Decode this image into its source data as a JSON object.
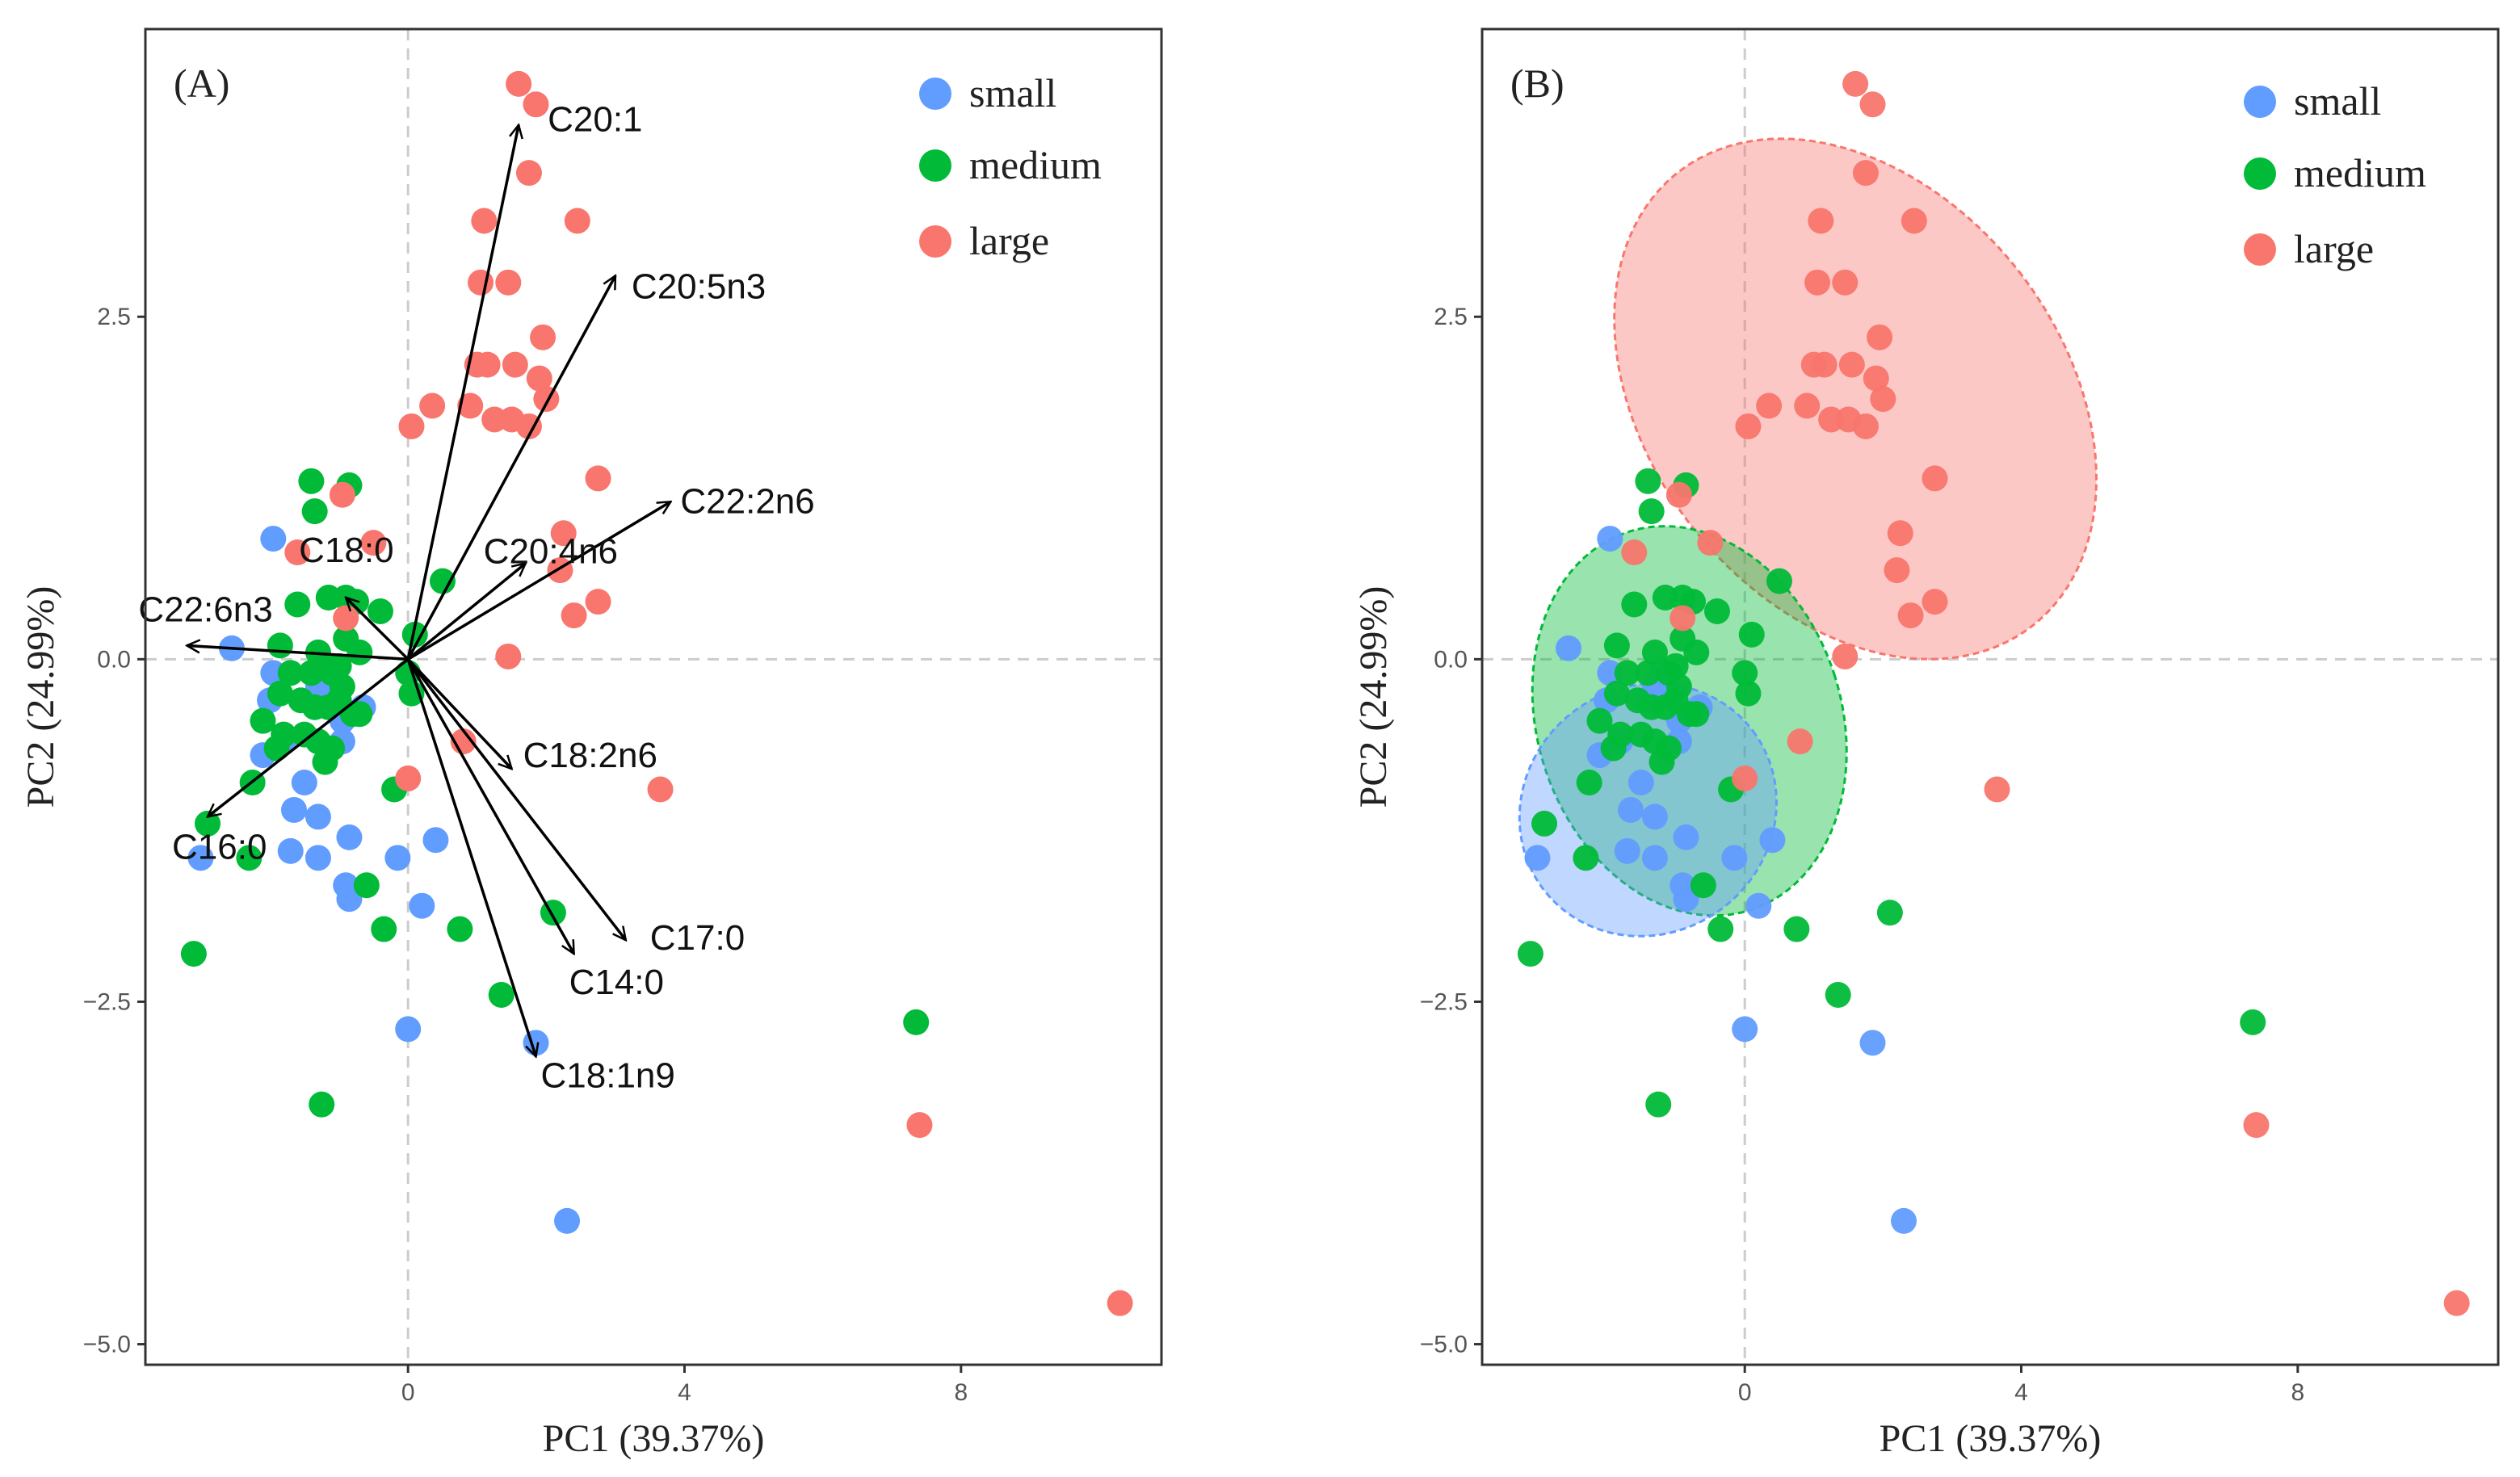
{
  "colors": {
    "small": "#619cff",
    "medium": "#00ba38",
    "large": "#f8766d",
    "frame": "#333333",
    "zero_line": "#cccccc"
  },
  "legend": [
    "small",
    "medium",
    "large"
  ],
  "chart_data": [
    {
      "type": "scatter",
      "subtype": "biplot",
      "panel_label": "(A)",
      "xlabel": "PC1 (39.37%)",
      "ylabel": "PC2 (24.99%)",
      "xlim": [
        -3.8,
        10.9
      ],
      "ylim": [
        -5.15,
        4.6
      ],
      "xticks": [
        0,
        4,
        8
      ],
      "xtick_labels": [
        "0",
        "4",
        "8"
      ],
      "yticks": [
        -5,
        -2.5,
        0,
        2.5
      ],
      "ytick_labels": [
        "−5.0",
        "−2.5",
        "0.0",
        "2.5"
      ],
      "legend_position": "top-right",
      "loadings": [
        {
          "label": "C20:1",
          "x": 1.6,
          "y": 3.9
        },
        {
          "label": "C20:5n3",
          "x": 3.0,
          "y": 2.8
        },
        {
          "label": "C22:2n6",
          "x": 3.8,
          "y": 1.15
        },
        {
          "label": "C20:4n6",
          "x": 1.7,
          "y": 0.7
        },
        {
          "label": "C18:0",
          "x": -0.9,
          "y": 0.45
        },
        {
          "label": "C22:6n3",
          "x": -3.2,
          "y": 0.1
        },
        {
          "label": "C16:0",
          "x": -2.9,
          "y": -1.15
        },
        {
          "label": "C18:2n6",
          "x": 1.5,
          "y": -0.8
        },
        {
          "label": "C17:0",
          "x": 3.15,
          "y": -2.05
        },
        {
          "label": "C14:0",
          "x": 2.4,
          "y": -2.15
        },
        {
          "label": "C18:1n9",
          "x": 1.85,
          "y": -2.9
        }
      ]
    },
    {
      "type": "scatter",
      "panel_label": "(B)",
      "xlabel": "PC1 (39.37%)",
      "ylabel": "PC2 (24.99%)",
      "xlim": [
        -3.8,
        10.9
      ],
      "ylim": [
        -5.15,
        4.6
      ],
      "xticks": [
        0,
        4,
        8
      ],
      "xtick_labels": [
        "0",
        "4",
        "8"
      ],
      "yticks": [
        -5,
        -2.5,
        0,
        2.5
      ],
      "ytick_labels": [
        "−5.0",
        "−2.5",
        "0.0",
        "2.5"
      ],
      "legend_position": "top-right",
      "confidence_ellipses": [
        {
          "group": "large",
          "cx": 1.6,
          "cy": 1.9,
          "rx": 3.0,
          "ry": 2.1,
          "angle_deg": 38
        },
        {
          "group": "medium",
          "cx": -0.8,
          "cy": -0.45,
          "rx": 2.2,
          "ry": 1.45,
          "angle_deg": 18
        },
        {
          "group": "small",
          "cx": -1.4,
          "cy": -1.1,
          "rx": 1.9,
          "ry": 0.9,
          "angle_deg": 37
        }
      ]
    }
  ],
  "series": [
    {
      "name": "small",
      "points": [
        [
          -1.95,
          0.88
        ],
        [
          -2.55,
          0.08
        ],
        [
          -1.95,
          -0.1
        ],
        [
          -1.2,
          -0.1
        ],
        [
          -2.1,
          -0.7
        ],
        [
          -1.8,
          -0.6
        ],
        [
          -1.4,
          -0.3
        ],
        [
          -1.05,
          -0.25
        ],
        [
          -0.95,
          -0.45
        ],
        [
          -0.65,
          -0.35
        ],
        [
          -0.95,
          -0.6
        ],
        [
          -1.5,
          -0.9
        ],
        [
          -1.65,
          -1.1
        ],
        [
          -1.3,
          -1.15
        ],
        [
          -0.85,
          -1.3
        ],
        [
          -1.7,
          -1.4
        ],
        [
          -1.3,
          -1.45
        ],
        [
          -0.9,
          -1.65
        ],
        [
          -0.85,
          -1.75
        ],
        [
          -0.15,
          -1.45
        ],
        [
          0.4,
          -1.32
        ],
        [
          0.2,
          -1.8
        ],
        [
          -3.0,
          -1.45
        ],
        [
          0.0,
          -2.7
        ],
        [
          1.85,
          -2.8
        ],
        [
          2.3,
          -4.1
        ],
        [
          -1.3,
          -0.2
        ],
        [
          -2.0,
          -0.3
        ]
      ]
    },
    {
      "name": "medium",
      "points": [
        [
          -1.4,
          1.3
        ],
        [
          -0.85,
          1.27
        ],
        [
          -1.35,
          1.08
        ],
        [
          -1.6,
          0.4
        ],
        [
          -1.15,
          0.45
        ],
        [
          -0.9,
          0.45
        ],
        [
          -0.75,
          0.42
        ],
        [
          -0.4,
          0.35
        ],
        [
          -0.9,
          0.15
        ],
        [
          -0.7,
          0.05
        ],
        [
          -1.3,
          0.05
        ],
        [
          -1.85,
          0.1
        ],
        [
          -1.7,
          -0.1
        ],
        [
          -1.4,
          -0.1
        ],
        [
          -1.1,
          -0.1
        ],
        [
          -1.0,
          -0.05
        ],
        [
          -0.95,
          -0.2
        ],
        [
          -1.85,
          -0.25
        ],
        [
          -1.55,
          -0.3
        ],
        [
          -1.35,
          -0.35
        ],
        [
          -1.15,
          -0.35
        ],
        [
          -1.0,
          -0.3
        ],
        [
          -0.8,
          -0.4
        ],
        [
          -2.1,
          -0.45
        ],
        [
          -1.8,
          -0.55
        ],
        [
          -1.5,
          -0.55
        ],
        [
          -1.3,
          -0.6
        ],
        [
          -1.1,
          -0.65
        ],
        [
          -0.7,
          -0.4
        ],
        [
          -1.9,
          -0.65
        ],
        [
          -1.2,
          -0.75
        ],
        [
          -2.25,
          -0.9
        ],
        [
          -2.9,
          -1.2
        ],
        [
          -2.3,
          -1.45
        ],
        [
          -0.6,
          -1.65
        ],
        [
          -0.35,
          -1.97
        ],
        [
          -0.2,
          -0.95
        ],
        [
          0.75,
          -1.97
        ],
        [
          0.5,
          0.57
        ],
        [
          0.1,
          0.18
        ],
        [
          0.0,
          -0.1
        ],
        [
          0.05,
          -0.25
        ],
        [
          2.1,
          -1.85
        ],
        [
          1.35,
          -2.45
        ],
        [
          -1.25,
          -3.25
        ],
        [
          -3.1,
          -2.15
        ],
        [
          7.35,
          -2.65
        ]
      ]
    },
    {
      "name": "large",
      "points": [
        [
          1.6,
          4.2
        ],
        [
          1.85,
          4.05
        ],
        [
          1.75,
          3.55
        ],
        [
          2.45,
          3.2
        ],
        [
          1.1,
          3.2
        ],
        [
          1.05,
          2.75
        ],
        [
          1.45,
          2.75
        ],
        [
          1.95,
          2.35
        ],
        [
          1.0,
          2.15
        ],
        [
          1.15,
          2.15
        ],
        [
          1.55,
          2.15
        ],
        [
          1.9,
          2.05
        ],
        [
          2.0,
          1.9
        ],
        [
          0.9,
          1.85
        ],
        [
          1.25,
          1.75
        ],
        [
          1.5,
          1.75
        ],
        [
          1.75,
          1.7
        ],
        [
          0.35,
          1.85
        ],
        [
          0.05,
          1.7
        ],
        [
          -0.95,
          1.2
        ],
        [
          2.75,
          1.32
        ],
        [
          2.25,
          0.92
        ],
        [
          -1.6,
          0.78
        ],
        [
          -0.5,
          0.85
        ],
        [
          2.2,
          0.65
        ],
        [
          -0.9,
          0.3
        ],
        [
          2.75,
          0.42
        ],
        [
          2.4,
          0.32
        ],
        [
          1.45,
          0.02
        ],
        [
          0.8,
          -0.6
        ],
        [
          0.0,
          -0.87
        ],
        [
          3.65,
          -0.95
        ],
        [
          7.4,
          -3.4
        ],
        [
          10.3,
          -4.7
        ]
      ]
    }
  ]
}
